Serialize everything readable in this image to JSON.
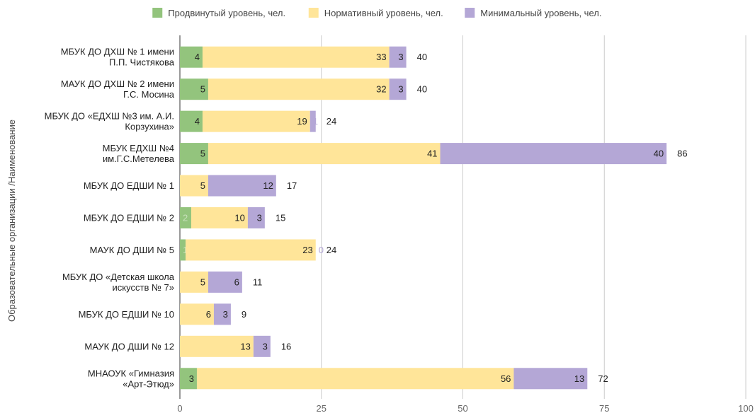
{
  "chart_data": {
    "type": "bar",
    "orientation": "horizontal",
    "stacked": true,
    "ylabel": "Образовательные организации /Наименование",
    "xlim": [
      0,
      100
    ],
    "xticks": [
      0,
      25,
      50,
      75,
      100
    ],
    "grid": true,
    "legend_position": "top",
    "categories": [
      [
        "МБУК ДО ДХШ № 1 имени",
        "П.П. Чистякова"
      ],
      [
        "МАУК ДО ДХШ № 2 имени",
        "Г.С. Мосина"
      ],
      [
        "МБУК ДО «ЕДХШ №3 им. А.И.",
        "Корзухина»"
      ],
      [
        "МБУК ЕДХШ №4",
        "им.Г.С.Метелева"
      ],
      [
        "МБУК ДО ЕДШИ № 1"
      ],
      [
        "МБУК ДО ЕДШИ № 2"
      ],
      [
        "МАУК ДО ДШИ № 5"
      ],
      [
        "МБУК ДО «Детская школа",
        "искусств № 7»"
      ],
      [
        "МБУК ДО ЕДШИ № 10"
      ],
      [
        "МАУК ДО ДШИ № 12"
      ],
      [
        "МНАОУК «Гимназия",
        "«Арт-Этюд»"
      ]
    ],
    "series": [
      {
        "name": "Продвинутый уровень, чел.",
        "color": "#93c47d",
        "values": [
          4,
          5,
          4,
          5,
          0,
          2,
          1,
          0,
          0,
          0,
          3
        ]
      },
      {
        "name": "Нормативный уровень, чел.",
        "color": "#ffe599",
        "values": [
          33,
          32,
          19,
          41,
          5,
          10,
          23,
          5,
          6,
          13,
          56
        ]
      },
      {
        "name": "Минимальный уровень, чел.",
        "color": "#b4a7d6",
        "values": [
          3,
          3,
          1,
          40,
          12,
          3,
          0,
          6,
          3,
          3,
          13
        ]
      }
    ],
    "totals": [
      40,
      40,
      24,
      86,
      17,
      15,
      24,
      11,
      9,
      16,
      72
    ],
    "tick_color": "#666666",
    "grid_color": "#cccccc",
    "text_color": "#222222",
    "small_label_colors": [
      "#c6e0b9",
      "#ffe599",
      "#b4a7d6"
    ]
  }
}
